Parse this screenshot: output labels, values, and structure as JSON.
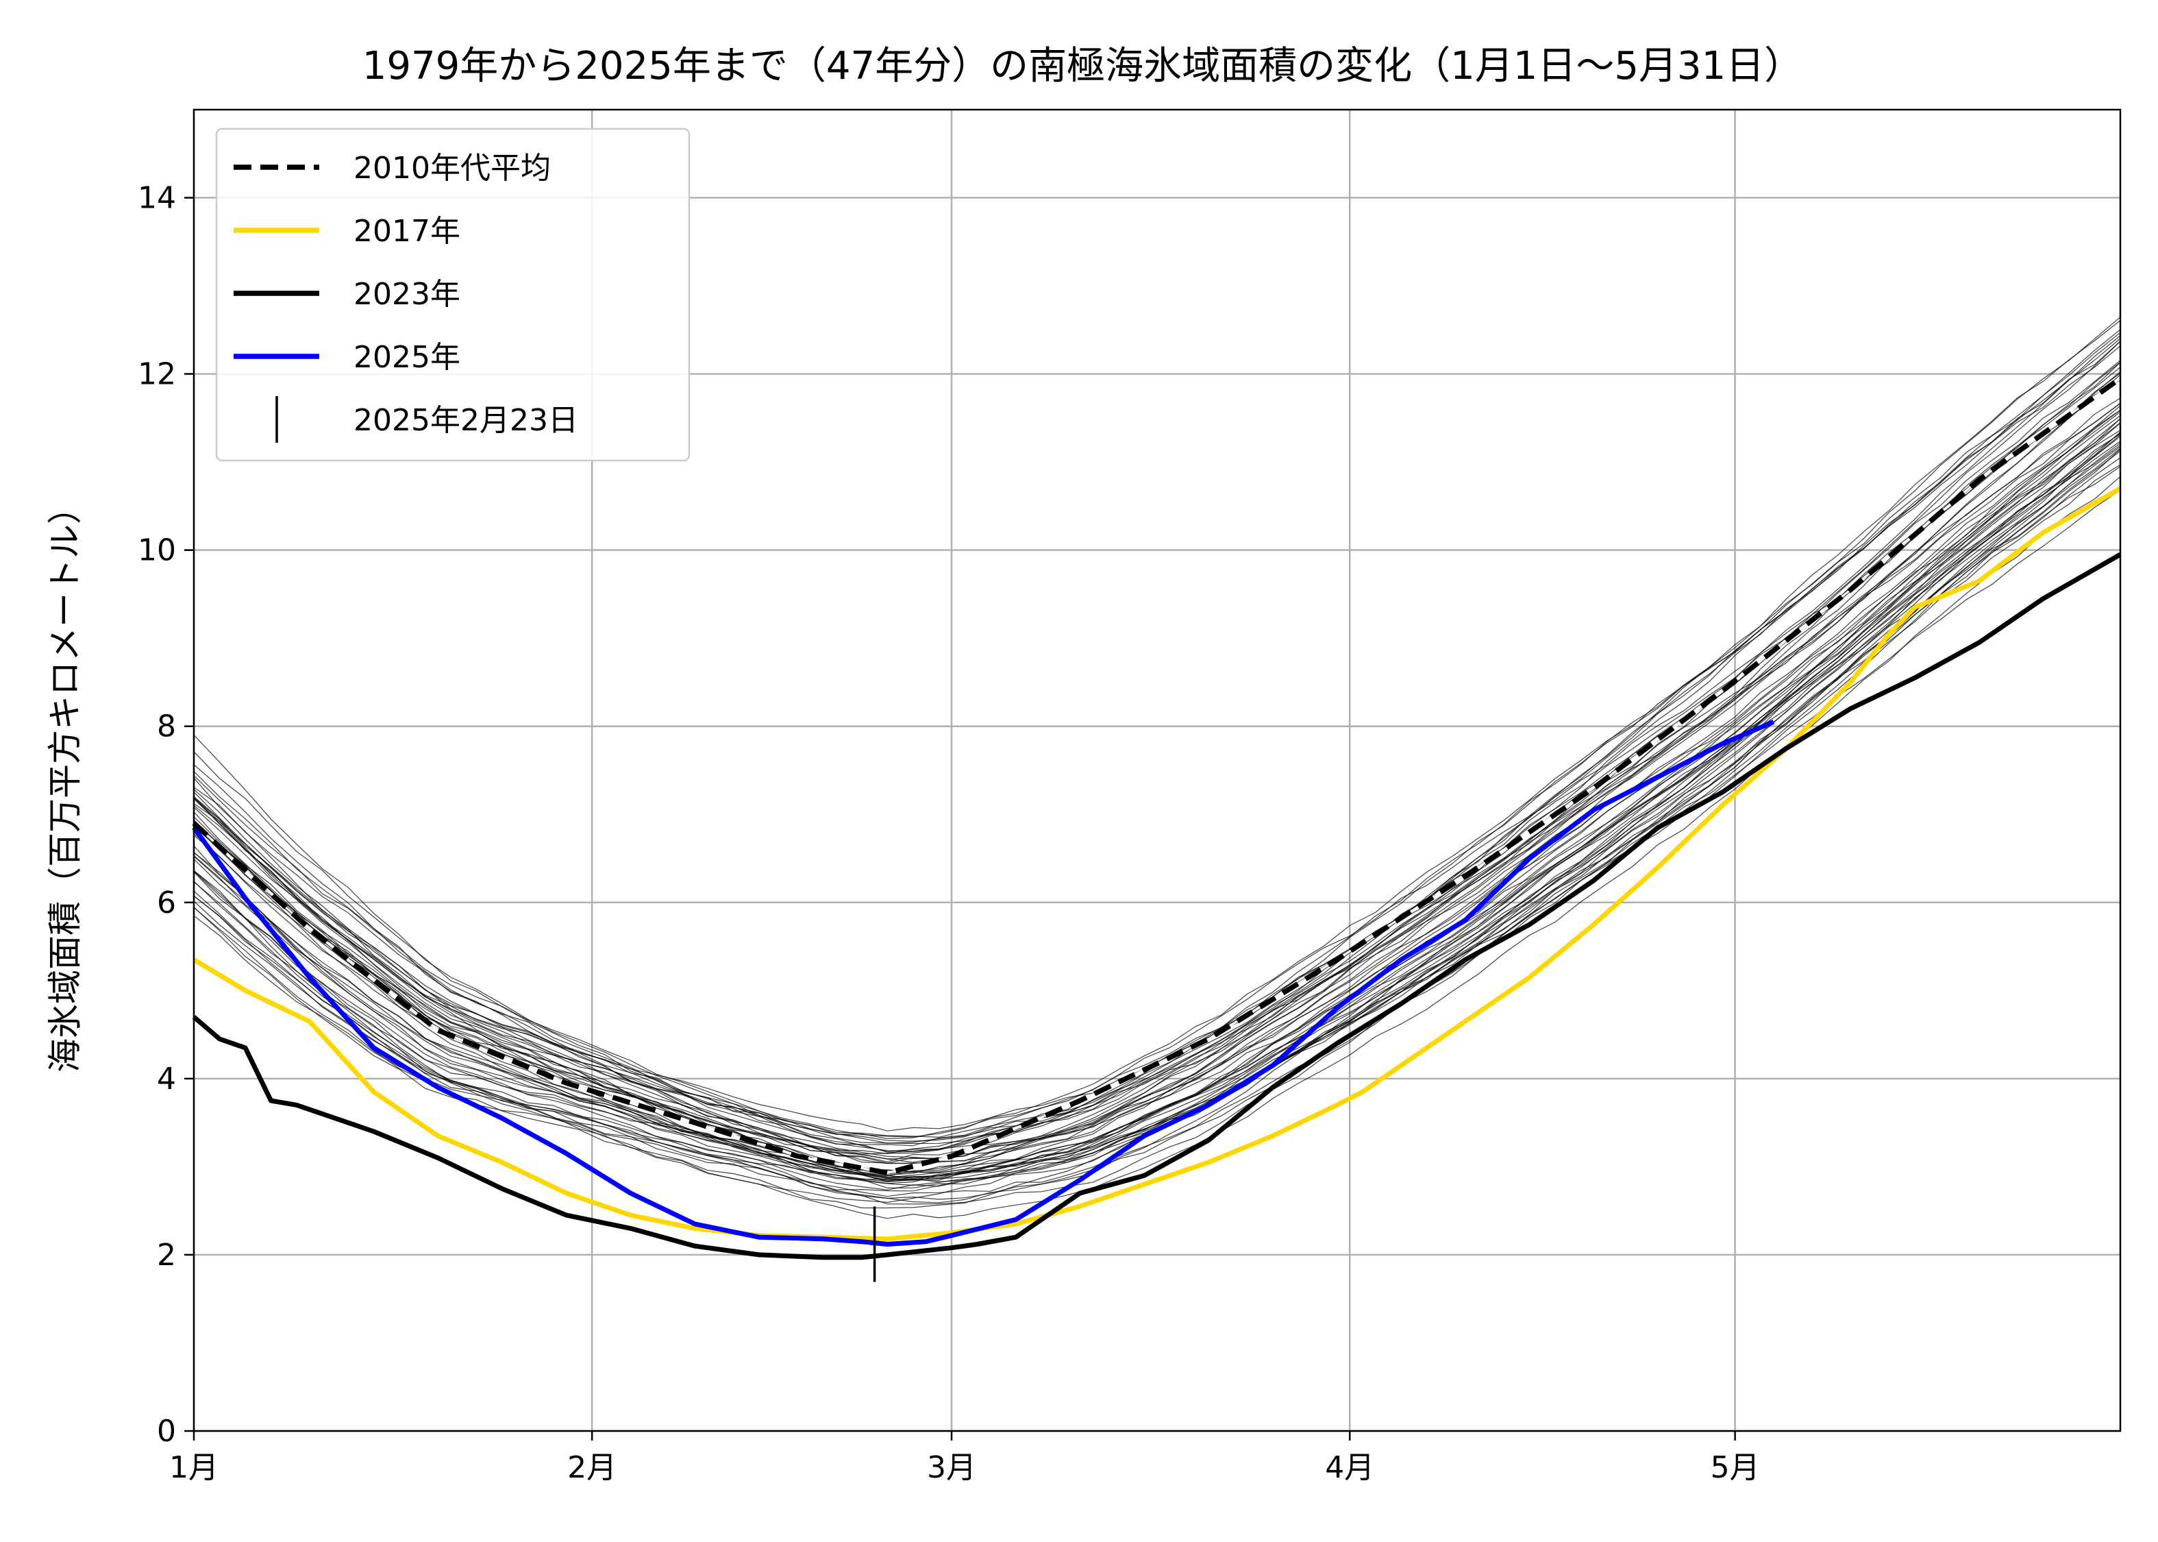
{
  "chart_data": {
    "type": "line",
    "title": "1979年から2025年まで（47年分）の南極海氷域面積の変化（1月1日〜5月31日）",
    "xlabel": "",
    "ylabel": "海氷域面積（百万平方キロメートル）",
    "x_unit": "day of year",
    "xlim": [
      1,
      151
    ],
    "ylim": [
      0,
      15
    ],
    "x_ticks": [
      {
        "day": 1,
        "label": "1月"
      },
      {
        "day": 32,
        "label": "2月"
      },
      {
        "day": 60,
        "label": "3月"
      },
      {
        "day": 91,
        "label": "4月"
      },
      {
        "day": 121,
        "label": "5月"
      }
    ],
    "y_ticks": [
      0,
      2,
      4,
      6,
      8,
      10,
      12,
      14
    ],
    "grid": true,
    "legend_position": "upper-left",
    "background_series": {
      "count": 47,
      "color": "#000000",
      "mean": {
        "x": [
          1,
          10,
          20,
          30,
          40,
          50,
          55,
          60,
          70,
          80,
          90,
          100,
          110,
          120,
          130,
          140,
          151
        ],
        "y": [
          6.8,
          5.6,
          4.5,
          3.95,
          3.45,
          3.05,
          2.95,
          3.0,
          3.35,
          4.05,
          4.95,
          5.9,
          6.95,
          8.0,
          9.2,
          10.45,
          11.7
        ]
      },
      "spread": {
        "x": [
          1,
          15,
          30,
          45,
          58,
          75,
          90,
          105,
          120,
          135,
          151
        ],
        "y": [
          0.85,
          0.75,
          0.55,
          0.45,
          0.45,
          0.55,
          0.6,
          0.7,
          0.8,
          0.85,
          0.95
        ]
      }
    },
    "series": [
      {
        "name": "2010年代平均",
        "color": "#000000",
        "style": "dashed",
        "x": [
          1,
          10,
          20,
          30,
          40,
          48,
          55,
          60,
          70,
          80,
          90,
          100,
          110,
          120,
          130,
          140,
          151
        ],
        "y": [
          6.9,
          5.7,
          4.55,
          3.95,
          3.5,
          3.12,
          2.93,
          3.12,
          3.75,
          4.45,
          5.35,
          6.3,
          7.3,
          8.4,
          9.55,
          10.8,
          11.95
        ]
      },
      {
        "name": "2017年",
        "color": "#FFD700",
        "style": "solid",
        "x": [
          1,
          5,
          10,
          15,
          20,
          25,
          30,
          35,
          40,
          45,
          50,
          55,
          60,
          65,
          70,
          75,
          80,
          85,
          90,
          92,
          95,
          100,
          105,
          110,
          115,
          120,
          125,
          130,
          133,
          135,
          140,
          145,
          151
        ],
        "y": [
          5.35,
          5.0,
          4.65,
          3.85,
          3.35,
          3.05,
          2.7,
          2.45,
          2.3,
          2.22,
          2.2,
          2.18,
          2.25,
          2.35,
          2.55,
          2.8,
          3.05,
          3.35,
          3.7,
          3.85,
          4.15,
          4.65,
          5.15,
          5.75,
          6.4,
          7.1,
          7.75,
          8.5,
          9.05,
          9.35,
          9.65,
          10.2,
          10.7
        ]
      },
      {
        "name": "2023年",
        "color": "#000000",
        "style": "solid",
        "x": [
          1,
          3,
          5,
          7,
          9,
          11,
          13,
          15,
          20,
          25,
          30,
          35,
          40,
          45,
          50,
          53,
          55,
          60,
          62,
          65,
          70,
          75,
          80,
          85,
          90,
          95,
          100,
          105,
          110,
          115,
          120,
          125,
          130,
          135,
          140,
          145,
          151
        ],
        "y": [
          4.7,
          4.45,
          4.35,
          3.75,
          3.7,
          3.6,
          3.5,
          3.4,
          3.1,
          2.75,
          2.45,
          2.3,
          2.1,
          2.0,
          1.97,
          1.97,
          2.0,
          2.08,
          2.12,
          2.2,
          2.7,
          2.9,
          3.3,
          3.9,
          4.4,
          4.85,
          5.35,
          5.75,
          6.25,
          6.85,
          7.25,
          7.75,
          8.2,
          8.55,
          8.95,
          9.45,
          9.95
        ]
      },
      {
        "name": "2025年",
        "color": "#0000FF",
        "style": "solid",
        "x": [
          1,
          5,
          10,
          15,
          20,
          25,
          30,
          35,
          40,
          45,
          50,
          53,
          55,
          58,
          60,
          65,
          70,
          75,
          80,
          85,
          90,
          95,
          100,
          105,
          110,
          114,
          120,
          124
        ],
        "y": [
          6.85,
          6.05,
          5.15,
          4.35,
          3.9,
          3.55,
          3.15,
          2.7,
          2.35,
          2.2,
          2.18,
          2.15,
          2.12,
          2.15,
          2.22,
          2.4,
          2.85,
          3.35,
          3.7,
          4.15,
          4.8,
          5.35,
          5.8,
          6.5,
          7.05,
          7.35,
          7.8,
          8.05
        ]
      }
    ],
    "marker": {
      "label": "2025年2月23日",
      "x": 54,
      "y": 2.12
    }
  }
}
